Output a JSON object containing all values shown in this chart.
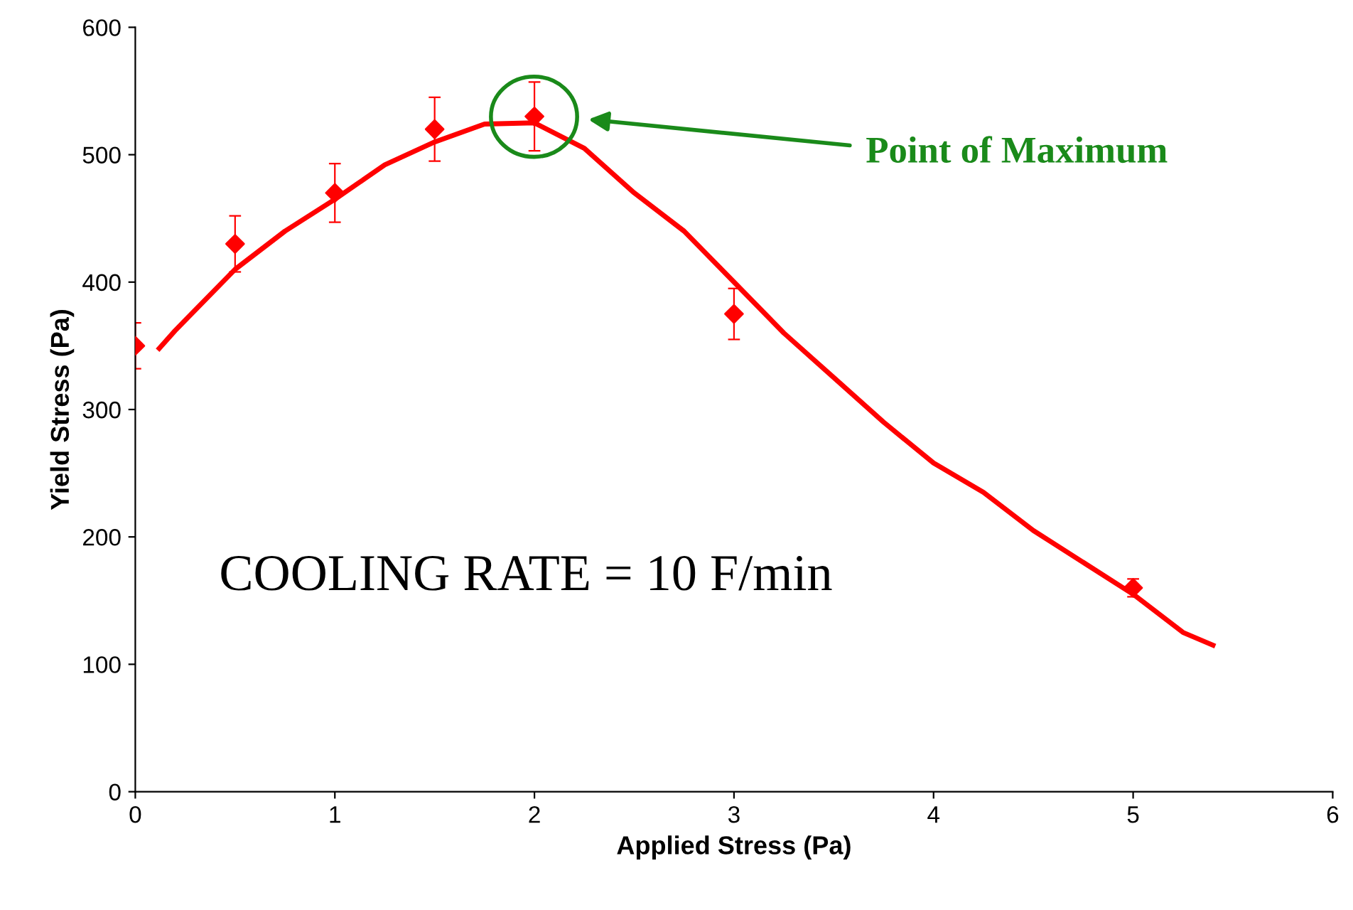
{
  "chart_data": {
    "type": "scatter",
    "xlabel": "Applied Stress (Pa)",
    "ylabel": "Yield Stress (Pa)",
    "xlim": [
      0,
      6
    ],
    "xticks": [
      0,
      1,
      2,
      3,
      4,
      5,
      6
    ],
    "ylim": [
      0,
      600
    ],
    "yticks": [
      0,
      100,
      200,
      300,
      400,
      500,
      600
    ],
    "grid": false,
    "series": [
      {
        "type": "scatter",
        "color": "#ff0000",
        "marker": "diamond",
        "x": [
          0,
          0.5,
          1,
          1.5,
          2,
          3,
          5
        ],
        "values": [
          350,
          430,
          470,
          520,
          530,
          375,
          160
        ],
        "errors": [
          18,
          22,
          23,
          25,
          27,
          20,
          7
        ]
      },
      {
        "type": "line",
        "color": "#ff0000",
        "marker": "none",
        "x": [
          0.12,
          0.2,
          0.5,
          0.75,
          1,
          1.25,
          1.5,
          1.75,
          2,
          2.25,
          2.5,
          2.75,
          3,
          3.25,
          3.5,
          3.75,
          4,
          4.25,
          4.5,
          4.75,
          5,
          5.25,
          5.4
        ],
        "values": [
          348,
          362,
          410,
          440,
          465,
          492,
          510,
          524,
          525,
          505,
          470,
          440,
          400,
          360,
          325,
          290,
          258,
          235,
          205,
          180,
          155,
          125,
          115
        ]
      }
    ],
    "annotations": [
      "Point of Maximum",
      "COOLING RATE = 10 F/min"
    ]
  }
}
